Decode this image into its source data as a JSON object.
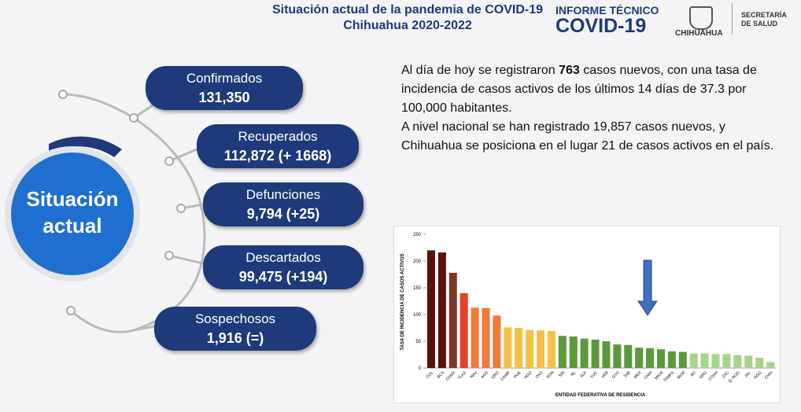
{
  "header": {
    "title": "Situación actual de la pandemia de COVID-19",
    "subtitle": "Chihuahua 2020-2022",
    "brand_top": "INFORME TÉCNICO",
    "brand_main": "COVID-19",
    "logo_text": "CHIHUAHUA",
    "agency": [
      "SECRETARÍA",
      "DE SALUD"
    ]
  },
  "circle": {
    "label": [
      "Situación",
      "actual"
    ]
  },
  "stats": [
    {
      "label": "Confirmados",
      "value": "131,350"
    },
    {
      "label": "Recuperados",
      "value": "112,872 (+ 1668)"
    },
    {
      "label": "Defunciones",
      "value": "9,794 (+25)"
    },
    {
      "label": "Descartados",
      "value": "99,475 (+194)"
    },
    {
      "label": "Sospechosos",
      "value": "1,916 (=)"
    }
  ],
  "summary": {
    "p1": [
      "Al día de hoy se registraron ",
      "763",
      " casos nuevos, con una tasa de incidencia de casos activos de los últimos 14 días de 37.3 por 100,000 habitantes."
    ],
    "p2": "A nivel nacional se han registrado 19,857 casos nuevos, y Chihuahua se posiciona en el lugar 21 de casos activos en el país."
  },
  "chart_data": {
    "type": "bar",
    "y_label": "TASA DE INCIDENCIA DE CASOS ACTIVOS",
    "x_label": "ENTIDAD FEDERATIVA DE RESIDENCIA",
    "categories": [
      "COL",
      "BCS",
      "CDMX",
      "TLAX",
      "NAV",
      "AGS",
      "QRO",
      "CAMP",
      "PUE",
      "HGO",
      "OAX",
      "SON",
      "SIN",
      "NL",
      "SLP",
      "YUC",
      "VER",
      "GTO",
      "TAB",
      "MEX",
      "CHIH",
      "MICH",
      "TAMPS",
      "MOR",
      "BC",
      "GRO",
      "COAH",
      "ZAC",
      "Q. ROO",
      "JAL",
      "DGO",
      "CHIS"
    ],
    "values": [
      220,
      216,
      178,
      140,
      113,
      112,
      98,
      76,
      75,
      71,
      70,
      69,
      60,
      59,
      55,
      53,
      50,
      44,
      43,
      38,
      37,
      35,
      31,
      30,
      27,
      27,
      26,
      26,
      24,
      23,
      19,
      11
    ],
    "colors": [
      "#5c0f0f",
      "#5c0f0f",
      "#7a3b28",
      "#e8402a",
      "#f07a3a",
      "#f07a3a",
      "#f07a3a",
      "#f5c044",
      "#f5c044",
      "#f5c044",
      "#f5c044",
      "#f5c044",
      "#5a9a3a",
      "#5a9a3a",
      "#5a9a3a",
      "#5a9a3a",
      "#5a9a3a",
      "#5a9a3a",
      "#5a9a3a",
      "#5a9a3a",
      "#5a9a3a",
      "#5a9a3a",
      "#5a9a3a",
      "#5a9a3a",
      "#a8d48a",
      "#a8d48a",
      "#a8d48a",
      "#a8d48a",
      "#a8d48a",
      "#a8d48a",
      "#a8d48a",
      "#a8d48a"
    ],
    "ylim": [
      0,
      250
    ],
    "yticks": [
      0,
      50,
      100,
      150,
      200,
      250
    ]
  }
}
